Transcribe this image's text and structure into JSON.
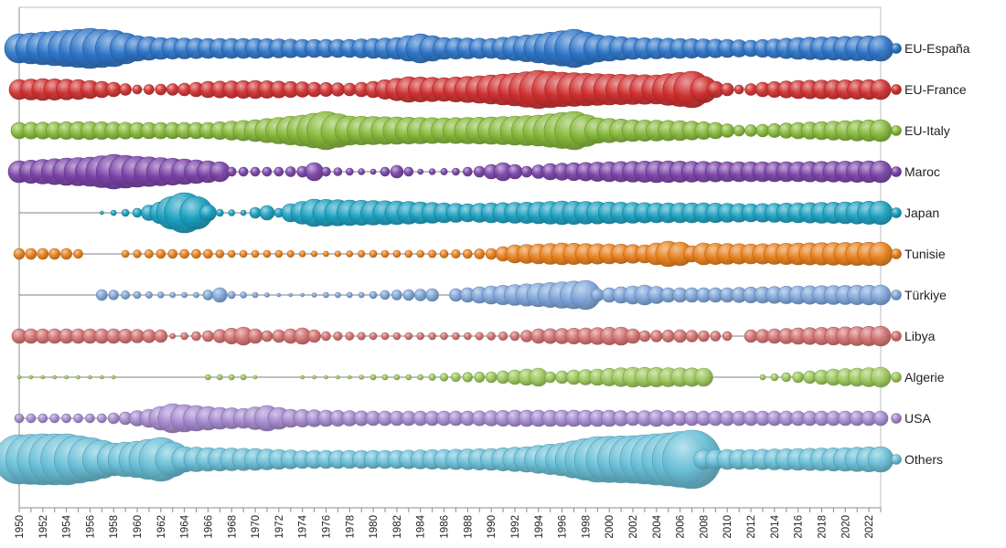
{
  "chart_data": {
    "type": "bubble",
    "x_start": 1950,
    "x_end": 2023,
    "x_tick_labels": [
      "1950",
      "1952",
      "1954",
      "1956",
      "1958",
      "1960",
      "1962",
      "1964",
      "1966",
      "1968",
      "1970",
      "1972",
      "1974",
      "1976",
      "1978",
      "1980",
      "1982",
      "1984",
      "1986",
      "1988",
      "1990",
      "1992",
      "1994",
      "1996",
      "1998",
      "2000",
      "2002",
      "2004",
      "2006",
      "2008",
      "2010",
      "2012",
      "2014",
      "2016",
      "2018",
      "2020",
      "2022"
    ],
    "title": "",
    "xlabel": "",
    "ylabel": "",
    "grid": false,
    "legend_position": "right",
    "series": [
      {
        "name": "EU-España",
        "color": "#2E75C8",
        "anchors": [
          [
            1950,
            16
          ],
          [
            1953,
            19
          ],
          [
            1956,
            22
          ],
          [
            1958,
            20
          ],
          [
            1960,
            14
          ],
          [
            1962,
            12
          ],
          [
            1966,
            11
          ],
          [
            1970,
            11
          ],
          [
            1974,
            10
          ],
          [
            1978,
            10
          ],
          [
            1982,
            12
          ],
          [
            1984,
            16
          ],
          [
            1986,
            12
          ],
          [
            1990,
            11
          ],
          [
            1994,
            16
          ],
          [
            1997,
            21
          ],
          [
            1999,
            15
          ],
          [
            2002,
            12
          ],
          [
            2006,
            11
          ],
          [
            2010,
            10
          ],
          [
            2012,
            9
          ],
          [
            2016,
            12
          ],
          [
            2023,
            14
          ]
        ]
      },
      {
        "name": "EU-France",
        "color": "#D03030",
        "anchors": [
          [
            1950,
            11
          ],
          [
            1952,
            12
          ],
          [
            1955,
            11
          ],
          [
            1958,
            8
          ],
          [
            1960,
            5
          ],
          [
            1964,
            7
          ],
          [
            1966,
            9
          ],
          [
            1970,
            10
          ],
          [
            1975,
            8
          ],
          [
            1978,
            7
          ],
          [
            1980,
            9
          ],
          [
            1983,
            14
          ],
          [
            1986,
            13
          ],
          [
            1989,
            15
          ],
          [
            1992,
            18
          ],
          [
            1994,
            21
          ],
          [
            1996,
            19
          ],
          [
            2000,
            17
          ],
          [
            2004,
            16
          ],
          [
            2007,
            20
          ],
          [
            2009,
            9
          ],
          [
            2011,
            5
          ],
          [
            2013,
            8
          ],
          [
            2016,
            10
          ],
          [
            2023,
            11
          ]
        ]
      },
      {
        "name": "EU-Italy",
        "color": "#86B93A",
        "anchors": [
          [
            1950,
            9
          ],
          [
            1956,
            10
          ],
          [
            1960,
            9
          ],
          [
            1966,
            9
          ],
          [
            1970,
            12
          ],
          [
            1974,
            17
          ],
          [
            1976,
            21
          ],
          [
            1978,
            16
          ],
          [
            1982,
            15
          ],
          [
            1986,
            14
          ],
          [
            1990,
            15
          ],
          [
            1994,
            17
          ],
          [
            1997,
            21
          ],
          [
            1999,
            14
          ],
          [
            2002,
            12
          ],
          [
            2006,
            11
          ],
          [
            2009,
            9
          ],
          [
            2011,
            6
          ],
          [
            2013,
            7
          ],
          [
            2016,
            9
          ],
          [
            2020,
            11
          ],
          [
            2023,
            12
          ]
        ]
      },
      {
        "name": "Maroc",
        "color": "#7A42A8",
        "anchors": [
          [
            1950,
            12
          ],
          [
            1954,
            15
          ],
          [
            1956,
            16
          ],
          [
            1958,
            19
          ],
          [
            1960,
            17
          ],
          [
            1964,
            14
          ],
          [
            1967,
            11
          ],
          [
            1968,
            5
          ],
          [
            1972,
            5
          ],
          [
            1974,
            6
          ],
          [
            1975,
            10
          ],
          [
            1976,
            5
          ],
          [
            1978,
            4
          ],
          [
            1980,
            3
          ],
          [
            1982,
            7
          ],
          [
            1984,
            3
          ],
          [
            1987,
            4
          ],
          [
            1989,
            6
          ],
          [
            1991,
            10
          ],
          [
            1993,
            6
          ],
          [
            1995,
            9
          ],
          [
            2000,
            11
          ],
          [
            2004,
            12
          ],
          [
            2010,
            11
          ],
          [
            2016,
            11
          ],
          [
            2023,
            12
          ]
        ]
      },
      {
        "name": "Japan",
        "color": "#1BA0C0",
        "anchors": [
          [
            1950,
            0
          ],
          [
            1957,
            2
          ],
          [
            1960,
            5
          ],
          [
            1962,
            12
          ],
          [
            1963,
            18
          ],
          [
            1964,
            22
          ],
          [
            1965,
            18
          ],
          [
            1966,
            9
          ],
          [
            1967,
            4
          ],
          [
            1969,
            3
          ],
          [
            1970,
            6
          ],
          [
            1971,
            8
          ],
          [
            1972,
            5
          ],
          [
            1973,
            10
          ],
          [
            1975,
            15
          ],
          [
            1978,
            14
          ],
          [
            1982,
            13
          ],
          [
            1986,
            11
          ],
          [
            1988,
            10
          ],
          [
            1990,
            11
          ],
          [
            1994,
            12
          ],
          [
            1996,
            13
          ],
          [
            2000,
            12
          ],
          [
            2004,
            11
          ],
          [
            2008,
            11
          ],
          [
            2012,
            10
          ],
          [
            2016,
            11
          ],
          [
            2020,
            12
          ],
          [
            2023,
            13
          ]
        ]
      },
      {
        "name": "Tunisie",
        "color": "#E8801C",
        "anchors": [
          [
            1950,
            6
          ],
          [
            1954,
            6
          ],
          [
            1955,
            5
          ],
          [
            1956,
            0
          ],
          [
            1958,
            0
          ],
          [
            1959,
            4
          ],
          [
            1962,
            5
          ],
          [
            1966,
            5
          ],
          [
            1968,
            4
          ],
          [
            1972,
            4
          ],
          [
            1976,
            3
          ],
          [
            1980,
            4
          ],
          [
            1984,
            4
          ],
          [
            1988,
            5
          ],
          [
            1990,
            6
          ],
          [
            1992,
            10
          ],
          [
            1996,
            12
          ],
          [
            2000,
            11
          ],
          [
            2003,
            10
          ],
          [
            2005,
            14
          ],
          [
            2006,
            13
          ],
          [
            2007,
            9
          ],
          [
            2008,
            12
          ],
          [
            2012,
            11
          ],
          [
            2016,
            12
          ],
          [
            2023,
            13
          ]
        ]
      },
      {
        "name": "Türkiye",
        "color": "#7EA6DA",
        "anchors": [
          [
            1950,
            0
          ],
          [
            1956,
            0
          ],
          [
            1957,
            6
          ],
          [
            1960,
            4
          ],
          [
            1963,
            3
          ],
          [
            1965,
            3
          ],
          [
            1967,
            8
          ],
          [
            1968,
            4
          ],
          [
            1970,
            3
          ],
          [
            1972,
            2
          ],
          [
            1974,
            2
          ],
          [
            1976,
            3
          ],
          [
            1979,
            3
          ],
          [
            1981,
            5
          ],
          [
            1983,
            6
          ],
          [
            1985,
            7
          ],
          [
            1986,
            0
          ],
          [
            1987,
            7
          ],
          [
            1990,
            10
          ],
          [
            1994,
            13
          ],
          [
            1998,
            16
          ],
          [
            1999,
            7
          ],
          [
            2001,
            9
          ],
          [
            2003,
            11
          ],
          [
            2005,
            8
          ],
          [
            2010,
            8
          ],
          [
            2016,
            10
          ],
          [
            2023,
            11
          ]
        ]
      },
      {
        "name": "Libya",
        "color": "#D37070",
        "anchors": [
          [
            1950,
            8
          ],
          [
            1954,
            8
          ],
          [
            1958,
            8
          ],
          [
            1962,
            7
          ],
          [
            1963,
            3
          ],
          [
            1966,
            6
          ],
          [
            1969,
            10
          ],
          [
            1971,
            6
          ],
          [
            1974,
            9
          ],
          [
            1976,
            5
          ],
          [
            1980,
            4
          ],
          [
            1984,
            4
          ],
          [
            1988,
            4
          ],
          [
            1992,
            5
          ],
          [
            1994,
            8
          ],
          [
            1998,
            9
          ],
          [
            2001,
            10
          ],
          [
            2003,
            6
          ],
          [
            2006,
            7
          ],
          [
            2010,
            5
          ],
          [
            2011,
            0
          ],
          [
            2012,
            7
          ],
          [
            2016,
            9
          ],
          [
            2023,
            11
          ]
        ]
      },
      {
        "name": "Algerie",
        "color": "#9CC85A",
        "anchors": [
          [
            1950,
            2
          ],
          [
            1954,
            2
          ],
          [
            1958,
            2
          ],
          [
            1959,
            0
          ],
          [
            1965,
            0
          ],
          [
            1966,
            3
          ],
          [
            1969,
            3
          ],
          [
            1970,
            2
          ],
          [
            1972,
            0
          ],
          [
            1974,
            2
          ],
          [
            1978,
            2
          ],
          [
            1980,
            3
          ],
          [
            1984,
            3
          ],
          [
            1987,
            5
          ],
          [
            1990,
            6
          ],
          [
            1993,
            9
          ],
          [
            1994,
            10
          ],
          [
            1995,
            6
          ],
          [
            1997,
            8
          ],
          [
            1999,
            9
          ],
          [
            2002,
            11
          ],
          [
            2008,
            10
          ],
          [
            2009,
            0
          ],
          [
            2012,
            0
          ],
          [
            2013,
            3
          ],
          [
            2016,
            6
          ],
          [
            2019,
            9
          ],
          [
            2023,
            11
          ]
        ]
      },
      {
        "name": "USA",
        "color": "#A58ACF",
        "anchors": [
          [
            1950,
            5
          ],
          [
            1954,
            5
          ],
          [
            1957,
            5
          ],
          [
            1959,
            7
          ],
          [
            1961,
            10
          ],
          [
            1963,
            16
          ],
          [
            1965,
            14
          ],
          [
            1967,
            12
          ],
          [
            1969,
            11
          ],
          [
            1971,
            14
          ],
          [
            1973,
            10
          ],
          [
            1976,
            9
          ],
          [
            1980,
            8
          ],
          [
            1984,
            8
          ],
          [
            1988,
            8
          ],
          [
            1992,
            9
          ],
          [
            1996,
            9
          ],
          [
            2000,
            9
          ],
          [
            2002,
            8
          ],
          [
            2004,
            9
          ],
          [
            2006,
            8
          ],
          [
            2010,
            8
          ],
          [
            2016,
            8
          ],
          [
            2023,
            8
          ]
        ]
      },
      {
        "name": "Others",
        "color": "#6BC0D8",
        "anchors": [
          [
            1950,
            27
          ],
          [
            1952,
            28
          ],
          [
            1954,
            28
          ],
          [
            1956,
            24
          ],
          [
            1958,
            18
          ],
          [
            1960,
            20
          ],
          [
            1962,
            24
          ],
          [
            1964,
            14
          ],
          [
            1966,
            13
          ],
          [
            1970,
            12
          ],
          [
            1974,
            10
          ],
          [
            1978,
            10
          ],
          [
            1982,
            10
          ],
          [
            1986,
            11
          ],
          [
            1990,
            12
          ],
          [
            1993,
            14
          ],
          [
            1996,
            18
          ],
          [
            1999,
            25
          ],
          [
            2002,
            26
          ],
          [
            2005,
            29
          ],
          [
            2007,
            32
          ],
          [
            2008,
            11
          ],
          [
            2012,
            11
          ],
          [
            2016,
            12
          ],
          [
            2020,
            13
          ],
          [
            2023,
            14
          ]
        ]
      }
    ]
  }
}
